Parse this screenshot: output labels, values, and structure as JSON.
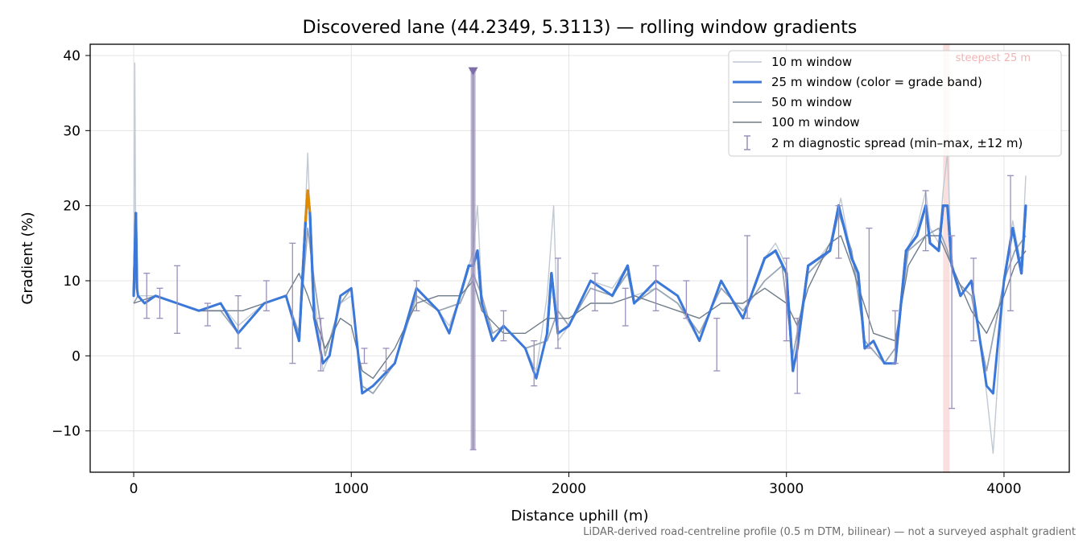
{
  "chart_data": {
    "type": "line",
    "title": "Discovered lane (44.2349, 5.3113) — rolling window gradients",
    "xlabel": "Distance uphill (m)",
    "ylabel": "Gradient (%)",
    "xlim": [
      -200,
      4300
    ],
    "ylim": [
      -15.5,
      41.5
    ],
    "xticks": [
      0,
      1000,
      2000,
      3000,
      4000
    ],
    "xtick_labels": [
      "0",
      "1000",
      "2000",
      "3000",
      "4000"
    ],
    "yticks": [
      -10,
      0,
      10,
      20,
      30,
      40
    ],
    "ytick_labels": [
      "−10",
      "0",
      "10",
      "20",
      "30",
      "40"
    ],
    "grid": true,
    "legend_position": "top-right",
    "footnote": "LiDAR-derived road-centreline profile (0.5 m DTM, bilinear) — not a surveyed asphalt gradient",
    "annotation": {
      "text": "steepest 25 m",
      "x_range": [
        3720,
        3750
      ],
      "color": "#f3b8b8"
    },
    "band_colors": {
      "normal": "#8a99aa",
      "steep": "#3b78d8",
      "very_steep": "#e08a00"
    },
    "series": [
      {
        "name": "10 m window",
        "color": "#c0c9d4",
        "x": [
          0,
          5,
          10,
          20,
          50,
          100,
          200,
          300,
          400,
          480,
          600,
          700,
          760,
          790,
          800,
          810,
          830,
          870,
          900,
          950,
          1000,
          1050,
          1100,
          1200,
          1300,
          1400,
          1450,
          1500,
          1540,
          1560,
          1580,
          1600,
          1650,
          1700,
          1800,
          1850,
          1900,
          1930,
          1950,
          2000,
          2100,
          2200,
          2270,
          2300,
          2400,
          2500,
          2600,
          2700,
          2800,
          2850,
          2900,
          2950,
          3000,
          3030,
          3050,
          3100,
          3150,
          3200,
          3250,
          3300,
          3330,
          3360,
          3400,
          3450,
          3500,
          3550,
          3600,
          3640,
          3660,
          3700,
          3720,
          3740,
          3760,
          3800,
          3850,
          3900,
          3920,
          3950,
          4000,
          4040,
          4080,
          4100
        ],
        "y": [
          8,
          39,
          10,
          8,
          8,
          8,
          7,
          6,
          7,
          4,
          7,
          8,
          3,
          20,
          27,
          19,
          8,
          -2,
          0,
          7,
          8,
          -4,
          -5,
          -1,
          9,
          6,
          4,
          8,
          12,
          14,
          20,
          8,
          3,
          4,
          1,
          -2,
          8,
          20,
          2,
          4,
          10,
          9,
          12,
          8,
          9,
          7,
          2,
          10,
          5,
          9,
          13,
          15,
          12,
          -2,
          0,
          12,
          13,
          15,
          21,
          13,
          10,
          1,
          2,
          -1,
          -1,
          14,
          17,
          22,
          17,
          15,
          22,
          27,
          12,
          8,
          10,
          0,
          -5,
          -13,
          10,
          18,
          12,
          24
        ]
      },
      {
        "name": "25 m window (color = grade band)",
        "color": "#3b78d8",
        "x": [
          0,
          10,
          15,
          20,
          50,
          100,
          200,
          300,
          400,
          480,
          600,
          700,
          760,
          790,
          800,
          810,
          830,
          870,
          900,
          950,
          1000,
          1050,
          1100,
          1200,
          1300,
          1400,
          1450,
          1500,
          1540,
          1560,
          1580,
          1600,
          1650,
          1700,
          1800,
          1850,
          1900,
          1920,
          1950,
          2000,
          2100,
          2200,
          2270,
          2300,
          2400,
          2500,
          2600,
          2700,
          2800,
          2850,
          2900,
          2950,
          3000,
          3030,
          3050,
          3100,
          3150,
          3200,
          3240,
          3300,
          3330,
          3360,
          3400,
          3450,
          3500,
          3550,
          3600,
          3640,
          3660,
          3700,
          3720,
          3740,
          3760,
          3800,
          3850,
          3900,
          3920,
          3950,
          4000,
          4040,
          4080,
          4100
        ],
        "y": [
          8,
          19,
          9,
          8,
          7,
          8,
          7,
          6,
          7,
          3,
          7,
          8,
          2,
          18,
          22,
          19,
          5,
          -1,
          0,
          8,
          9,
          -5,
          -4,
          -1,
          9,
          6,
          3,
          8,
          12,
          12,
          14,
          7,
          2,
          4,
          1,
          -3,
          3,
          11,
          3,
          4,
          10,
          8,
          12,
          7,
          10,
          8,
          2,
          10,
          5,
          9,
          13,
          14,
          11,
          -2,
          1,
          12,
          13,
          14,
          20,
          13,
          11,
          1,
          2,
          -1,
          -1,
          14,
          16,
          20,
          15,
          14,
          20,
          20,
          12,
          8,
          10,
          0,
          -4,
          -5,
          10,
          17,
          11,
          20
        ]
      },
      {
        "name": "50 m window",
        "color": "#9aa6b4",
        "x": [
          0,
          20,
          50,
          100,
          200,
          300,
          400,
          480,
          600,
          700,
          760,
          800,
          830,
          880,
          950,
          1000,
          1050,
          1100,
          1200,
          1300,
          1400,
          1500,
          1560,
          1600,
          1650,
          1700,
          1800,
          1900,
          1950,
          2000,
          2100,
          2200,
          2270,
          2300,
          2400,
          2500,
          2600,
          2700,
          2800,
          2900,
          2980,
          3030,
          3100,
          3200,
          3240,
          3300,
          3360,
          3450,
          3500,
          3560,
          3640,
          3700,
          3740,
          3780,
          3850,
          3920,
          4000,
          4050,
          4100
        ],
        "y": [
          7,
          8,
          7,
          8,
          7,
          6,
          6,
          3,
          7,
          8,
          3,
          17,
          10,
          0,
          7,
          9,
          -4,
          -5,
          -1,
          8,
          6,
          7,
          11,
          8,
          3,
          4,
          1,
          2,
          6,
          4,
          9,
          8,
          11,
          7,
          9,
          7,
          3,
          9,
          6,
          10,
          12,
          0,
          11,
          14,
          19,
          14,
          2,
          -1,
          1,
          14,
          16,
          17,
          14,
          10,
          8,
          -2,
          10,
          14,
          16
        ]
      },
      {
        "name": "100 m window",
        "color": "#6f7c8a",
        "x": [
          0,
          100,
          200,
          300,
          400,
          500,
          600,
          700,
          760,
          800,
          880,
          950,
          1000,
          1050,
          1100,
          1200,
          1300,
          1400,
          1500,
          1560,
          1600,
          1700,
          1800,
          1900,
          2000,
          2100,
          2200,
          2300,
          2400,
          2500,
          2600,
          2700,
          2800,
          2900,
          3000,
          3050,
          3100,
          3200,
          3250,
          3300,
          3400,
          3500,
          3560,
          3640,
          3700,
          3760,
          3850,
          3920,
          4000,
          4050,
          4100
        ],
        "y": [
          7,
          8,
          7,
          6,
          6,
          6,
          7,
          8,
          11,
          8,
          1,
          5,
          4,
          -2,
          -3,
          1,
          7,
          8,
          8,
          10,
          6,
          3,
          3,
          5,
          5,
          7,
          7,
          8,
          7,
          6,
          5,
          7,
          7,
          9,
          7,
          4,
          9,
          15,
          16,
          12,
          3,
          2,
          12,
          16,
          16,
          12,
          6,
          3,
          8,
          12,
          14
        ]
      }
    ],
    "diagnostic_spread": {
      "name": "2 m diagnostic spread (min–max, ±12 m)",
      "color": "#9a8fbb",
      "points": [
        {
          "x": 60,
          "low": 5,
          "high": 11
        },
        {
          "x": 120,
          "low": 5,
          "high": 9
        },
        {
          "x": 200,
          "low": 3,
          "high": 12
        },
        {
          "x": 340,
          "low": 4,
          "high": 7
        },
        {
          "x": 480,
          "low": 1,
          "high": 8
        },
        {
          "x": 610,
          "low": 6,
          "high": 10
        },
        {
          "x": 730,
          "low": -1,
          "high": 15
        },
        {
          "x": 860,
          "low": -2,
          "high": 5
        },
        {
          "x": 1060,
          "low": -1,
          "high": 1
        },
        {
          "x": 1160,
          "low": -2,
          "high": 1
        },
        {
          "x": 1300,
          "low": 6,
          "high": 10
        },
        {
          "x": 1560,
          "low": -12.5,
          "high": 38
        },
        {
          "x": 1700,
          "low": 2,
          "high": 6
        },
        {
          "x": 1840,
          "low": -4,
          "high": 2
        },
        {
          "x": 1950,
          "low": 1,
          "high": 13
        },
        {
          "x": 2120,
          "low": 6,
          "high": 11
        },
        {
          "x": 2260,
          "low": 4,
          "high": 9
        },
        {
          "x": 2400,
          "low": 6,
          "high": 12
        },
        {
          "x": 2540,
          "low": 5,
          "high": 10
        },
        {
          "x": 2680,
          "low": -2,
          "high": 5
        },
        {
          "x": 2820,
          "low": 5,
          "high": 16
        },
        {
          "x": 3000,
          "low": 2,
          "high": 13
        },
        {
          "x": 3050,
          "low": -5,
          "high": 5
        },
        {
          "x": 3240,
          "low": 13,
          "high": 20
        },
        {
          "x": 3380,
          "low": 1,
          "high": 17
        },
        {
          "x": 3500,
          "low": -1,
          "high": 6
        },
        {
          "x": 3640,
          "low": 14,
          "high": 22
        },
        {
          "x": 3760,
          "low": -7,
          "high": 16
        },
        {
          "x": 3860,
          "low": 2,
          "high": 13
        },
        {
          "x": 4030,
          "low": 6,
          "high": 24
        }
      ]
    }
  }
}
